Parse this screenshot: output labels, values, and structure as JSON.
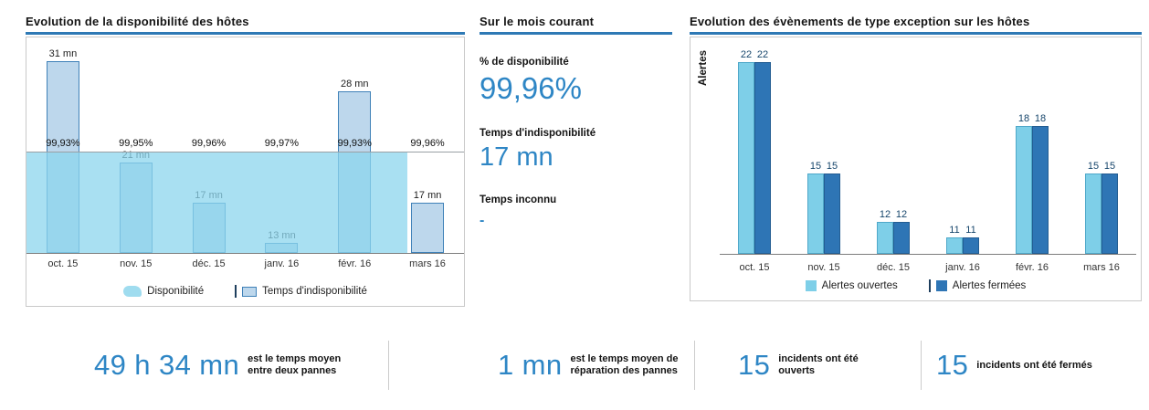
{
  "colors": {
    "accent_blue": "#2e79b5",
    "big_number_blue": "#2e86c5",
    "availability_area": "#8cd6ee",
    "downtime_bar_fill": "#bdd7ec",
    "downtime_bar_border": "#3f81b8",
    "open_alerts_bar": "#7ecfe8",
    "closed_alerts_bar": "#2e75b5"
  },
  "chart_data": [
    {
      "id": "host-availability",
      "type": "bar",
      "title": "Evolution de la disponibilité des hôtes",
      "categories": [
        "oct. 15",
        "nov. 15",
        "déc. 15",
        "janv. 16",
        "févr. 16",
        "mars 16"
      ],
      "series": [
        {
          "name": "Temps d'indisponibilité",
          "type": "bar",
          "unit": "mn",
          "values": [
            31,
            21,
            17,
            13,
            28,
            17
          ],
          "labels": [
            "31 mn",
            "21 mn",
            "17 mn",
            "13 mn",
            "28 mn",
            "17 mn"
          ],
          "color": "#bdd7ec",
          "border_color": "#3f81b8"
        },
        {
          "name": "Disponibilité",
          "type": "area",
          "unit": "%",
          "values": [
            99.93,
            99.95,
            99.96,
            99.97,
            99.93,
            99.96
          ],
          "labels": [
            "99,93%",
            "99,95%",
            "99,96%",
            "99,97%",
            "99,93%",
            "99,96%"
          ],
          "color": "#8cd6ee"
        }
      ],
      "bar_axis_range": [
        12,
        31
      ],
      "grid": "single-horizontal-line",
      "legend_position": "bottom"
    },
    {
      "id": "host-exception-events",
      "type": "bar",
      "title": "Evolution des évènements de type exception sur les hôtes",
      "ylabel": "Alertes",
      "categories": [
        "oct. 15",
        "nov. 15",
        "déc. 15",
        "janv. 16",
        "févr. 16",
        "mars 16"
      ],
      "series": [
        {
          "name": "Alertes ouvertes",
          "values": [
            22,
            15,
            12,
            11,
            18,
            15
          ],
          "color": "#7ecfe8",
          "border_color": "#4fa8c9"
        },
        {
          "name": "Alertes fermées",
          "values": [
            22,
            15,
            12,
            11,
            18,
            15
          ],
          "color": "#2e75b5",
          "border_color": "#235d92"
        }
      ],
      "bar_axis_range": [
        10,
        22
      ],
      "grid": "off",
      "legend_position": "bottom"
    }
  ],
  "current_month": {
    "title": "Sur le mois courant",
    "stats": [
      {
        "label": "% de disponibilité",
        "value": "99,96%"
      },
      {
        "label": "Temps d'indisponibilité",
        "value": "17 mn"
      },
      {
        "label": "Temps inconnu",
        "value": "-"
      }
    ]
  },
  "kpis": [
    {
      "value": "49 h 34 mn",
      "line1": "est le temps moyen",
      "line2": "entre deux pannes"
    },
    {
      "value": "1 mn",
      "line1": "est le temps moyen de",
      "line2": "réparation des pannes"
    },
    {
      "value": "15",
      "line1": "incidents ont été",
      "line2": "ouverts"
    },
    {
      "value": "15",
      "line1": "incidents ont été fermés",
      "line2": ""
    }
  ]
}
